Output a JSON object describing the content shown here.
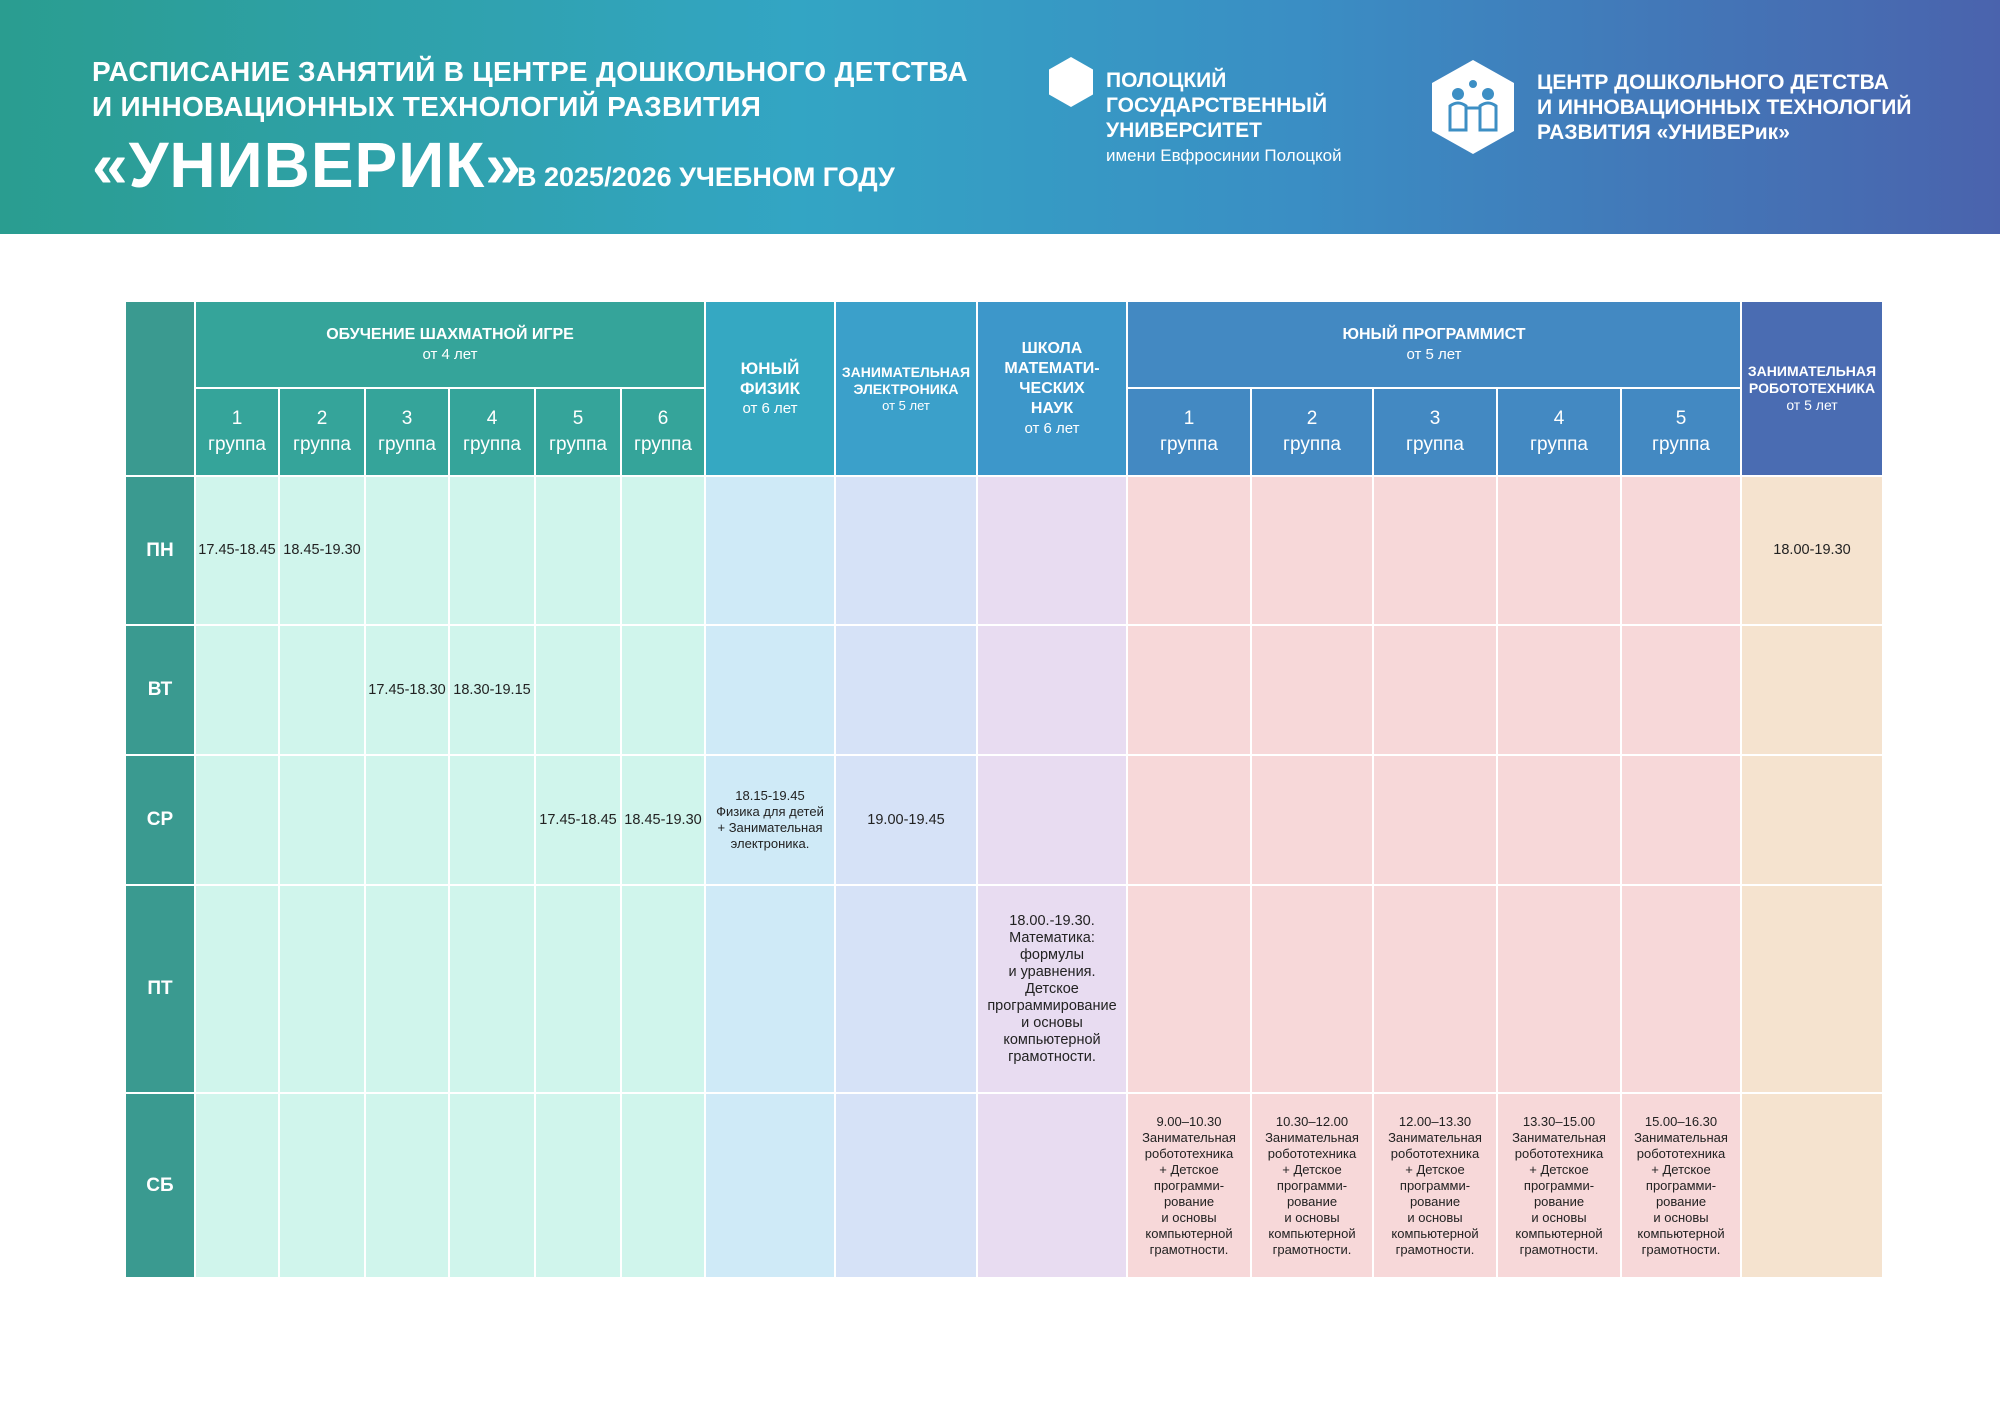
{
  "header": {
    "title_line1": "РАСПИСАНИЕ ЗАНЯТИЙ В ЦЕНТРЕ ДОШКОЛЬНОГО ДЕТСТВА",
    "title_line2": "И ИННОВАЦИОННЫХ ТЕХНОЛОГИЙ РАЗВИТИЯ",
    "title_big": "«УНИВЕРИК»",
    "year": "В 2025/2026 УЧЕБНОМ ГОДУ",
    "university": {
      "line1": "ПОЛОЦКИЙ",
      "line2": "ГОСУДАРСТВЕННЫЙ",
      "line3": "УНИВЕРСИТЕТ",
      "sub": "имени Евфросинии Полоцкой"
    },
    "center": {
      "line1": "ЦЕНТР ДОШКОЛЬНОГО ДЕТСТВА",
      "line2": "И ИННОВАЦИОННЫХ ТЕХНОЛОГИЙ",
      "line3": "РАЗВИТИЯ «УНИВЕРик»"
    }
  },
  "table": {
    "headers": {
      "chess": {
        "title": "ОБУЧЕНИЕ ШАХМАТНОЙ ИГРЕ",
        "age": "от 4 лет"
      },
      "fiz": {
        "title1": "ЮНЫЙ",
        "title2": "ФИЗИК",
        "age": "от 6 лет"
      },
      "el": {
        "title1": "ЗАНИМАТЕЛЬНАЯ",
        "title2": "ЭЛЕКТРОНИКА",
        "age": "от 5 лет"
      },
      "math": {
        "title1": "ШКОЛА",
        "title2": "МАТЕМАТИ-",
        "title3": "ЧЕСКИХ",
        "title4": "НАУК",
        "age": "от 6 лет"
      },
      "prog": {
        "title": "ЮНЫЙ ПРОГРАММИСТ",
        "age": "от 5 лет"
      },
      "rob": {
        "title1": "ЗАНИМАТЕЛЬНАЯ",
        "title2": "РОБОТОТЕХНИКА",
        "age": "от 5 лет"
      }
    },
    "group_word": "группа",
    "chess_groups": [
      "1",
      "2",
      "3",
      "4",
      "5",
      "6"
    ],
    "prog_groups": [
      "1",
      "2",
      "3",
      "4",
      "5"
    ],
    "days": [
      "ПН",
      "ВТ",
      "СР",
      "ПТ",
      "СБ"
    ],
    "cells": {
      "mon_chess1": "17.45-18.45",
      "mon_chess2": "18.45-19.30",
      "mon_rob": "18.00-19.30",
      "tue_chess3": "17.45-18.30",
      "tue_chess4": "18.30-19.15",
      "wed_chess5": "17.45-18.45",
      "wed_chess6": "18.45-19.30",
      "wed_fiz": [
        "18.15-19.45",
        "Физика для детей",
        "+ Занимательная",
        "электроника."
      ],
      "wed_el": "19.00-19.45",
      "fri_math": [
        "18.00.-19.30.",
        "Математика:",
        "формулы",
        "и уравнения.",
        "Детское",
        "программирование",
        "и основы",
        "компьютерной",
        "грамотности."
      ],
      "sat_prog": [
        [
          "9.00–10.30",
          "Занимательная",
          "робототехника",
          "+ Детское",
          "программи-",
          "рование",
          "и основы",
          "компьютерной",
          "грамотности."
        ],
        [
          "10.30–12.00",
          "Занимательная",
          "робототехника",
          "+ Детское",
          "программи-",
          "рование",
          "и основы",
          "компьютерной",
          "грамотности."
        ],
        [
          "12.00–13.30",
          "Занимательная",
          "робототехника",
          "+ Детское",
          "программи-",
          "рование",
          "и основы",
          "компьютерной",
          "грамотности."
        ],
        [
          "13.30–15.00",
          "Занимательная",
          "робототехника",
          "+ Детское",
          "программи-",
          "рование",
          "и основы",
          "компьютерной",
          "грамотности."
        ],
        [
          "15.00–16.30",
          "Занимательная",
          "робототехника",
          "+ Детское",
          "программи-",
          "рование",
          "и основы",
          "компьютерной",
          "грамотности."
        ]
      ]
    }
  }
}
